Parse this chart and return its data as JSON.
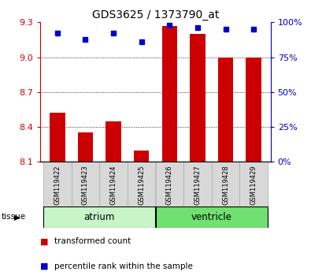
{
  "title": "GDS3625 / 1373790_at",
  "samples": [
    "GSM119422",
    "GSM119423",
    "GSM119424",
    "GSM119425",
    "GSM119426",
    "GSM119427",
    "GSM119428",
    "GSM119429"
  ],
  "red_values": [
    8.52,
    8.35,
    8.45,
    8.2,
    9.27,
    9.2,
    9.0,
    9.0
  ],
  "blue_values": [
    92,
    88,
    92,
    86,
    98,
    96,
    95,
    95
  ],
  "ymin": 8.1,
  "ymax": 9.3,
  "yticks": [
    8.1,
    8.4,
    8.7,
    9.0,
    9.3
  ],
  "right_yticks": [
    0,
    25,
    50,
    75,
    100
  ],
  "tissue_groups": [
    {
      "label": "atrium",
      "start": 0,
      "end": 4,
      "color": "#c8f5c8"
    },
    {
      "label": "ventricle",
      "start": 4,
      "end": 8,
      "color": "#70e070"
    }
  ],
  "bar_color": "#cc0000",
  "marker_color": "#0000cc",
  "tick_label_color_left": "#cc0000",
  "tick_label_color_right": "#0000cc",
  "legend_red": "transformed count",
  "legend_blue": "percentile rank within the sample",
  "bar_width": 0.55
}
